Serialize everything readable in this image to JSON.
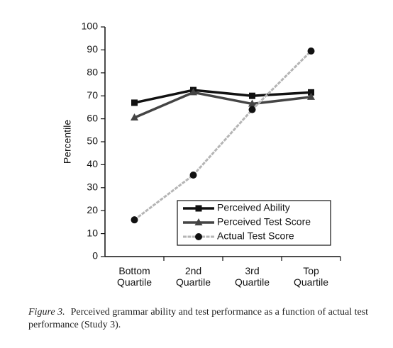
{
  "chart_data": {
    "type": "line",
    "y_label": "Percentile",
    "categories": [
      "Bottom Quartile",
      "2nd Quartile",
      "3rd Quartile",
      "Top Quartile"
    ],
    "series": [
      {
        "name": "Perceived Ability",
        "color": "#111111",
        "marker": "square",
        "values": [
          67,
          72.5,
          70,
          71.5
        ]
      },
      {
        "name": "Perceived Test Score",
        "color": "#444444",
        "marker": "triangle",
        "values": [
          60.5,
          71.5,
          66.5,
          69.5
        ]
      },
      {
        "name": "Actual Test Score",
        "color": "#b5b5b5",
        "marker": "circle",
        "values": [
          16,
          35.5,
          64,
          89.5
        ]
      }
    ],
    "ylim": [
      0,
      100
    ],
    "yticks": [
      0,
      10,
      20,
      30,
      40,
      50,
      60,
      70,
      80,
      90,
      100
    ],
    "legend": "lower right",
    "figure_label": "Figure 3.",
    "caption": "Perceived grammar ability and test performance as a function of actual test performance (Study 3)."
  }
}
